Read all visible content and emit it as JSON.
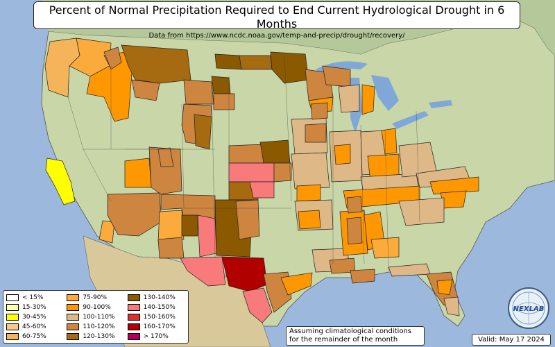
{
  "title": "Percent of Normal Precipitation Required to End Current Hydrological Drought in 6 Months",
  "subtitle": "Data from https://www.ncdc.noaa.gov/temp-and-precip/drought/recovery/",
  "legend": [
    {
      "label": "< 15%",
      "color": "#ffffff"
    },
    {
      "label": "15-30%",
      "color": "#ffffb4"
    },
    {
      "label": "30-45%",
      "color": "#ffff00"
    },
    {
      "label": "45-60%",
      "color": "#f9c98a"
    },
    {
      "label": "60-75%",
      "color": "#f6b45a"
    },
    {
      "label": "75-90%",
      "color": "#fbaa3c"
    },
    {
      "label": "90-100%",
      "color": "#ff9800"
    },
    {
      "label": "100-110%",
      "color": "#deb887"
    },
    {
      "label": "110-120%",
      "color": "#cd853f"
    },
    {
      "label": "120-130%",
      "color": "#a66a10"
    },
    {
      "label": "130-140%",
      "color": "#8b5a00"
    },
    {
      "label": "140-150%",
      "color": "#f97a7a"
    },
    {
      "label": "150-160%",
      "color": "#d83030"
    },
    {
      "label": "160-170%",
      "color": "#b00000"
    },
    {
      "label": "> 170%",
      "color": "#b0005a"
    }
  ],
  "note": {
    "line1": "Assuming climatological conditions",
    "line2": "for the remainder of the month"
  },
  "valid": "Valid: May 17 2024",
  "logo_text": "NEXLAB"
}
